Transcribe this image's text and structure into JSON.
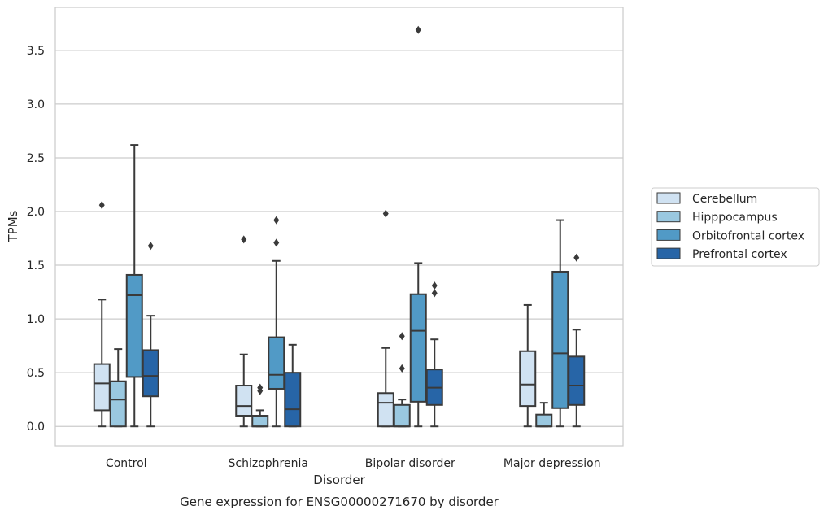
{
  "chart_data": {
    "type": "box",
    "title": "",
    "caption": "Gene expression for ENSG00000271670 by disorder",
    "xlabel": "Disorder",
    "ylabel": "TPMs",
    "ylim": [
      -0.18,
      3.9
    ],
    "yticks": [
      0.0,
      0.5,
      1.0,
      1.5,
      2.0,
      2.5,
      3.0,
      3.5
    ],
    "ytick_labels": [
      "0.0",
      "0.5",
      "1.0",
      "1.5",
      "2.0",
      "2.5",
      "3.0",
      "3.5"
    ],
    "categories": [
      "Control",
      "Schizophrenia",
      "Bipolar disorder",
      "Major depression"
    ],
    "grid": "horizontal",
    "legend_position": "right",
    "series": [
      {
        "name": "Cerebellum",
        "color": "#d0e2f2",
        "boxes": [
          {
            "whislo": 0.0,
            "q1": 0.15,
            "med": 0.4,
            "q3": 0.58,
            "whishi": 1.18,
            "fliers": [
              2.06
            ]
          },
          {
            "whislo": 0.0,
            "q1": 0.1,
            "med": 0.19,
            "q3": 0.38,
            "whishi": 0.67,
            "fliers": [
              1.74
            ]
          },
          {
            "whislo": 0.0,
            "q1": 0.0,
            "med": 0.22,
            "q3": 0.31,
            "whishi": 0.73,
            "fliers": [
              1.98
            ]
          },
          {
            "whislo": 0.0,
            "q1": 0.19,
            "med": 0.39,
            "q3": 0.7,
            "whishi": 1.13,
            "fliers": []
          }
        ]
      },
      {
        "name": "Hipppocampus",
        "color": "#9ac8e0",
        "boxes": [
          {
            "whislo": 0.0,
            "q1": 0.0,
            "med": 0.25,
            "q3": 0.42,
            "whishi": 0.72,
            "fliers": []
          },
          {
            "whislo": 0.0,
            "q1": 0.0,
            "med": 0.0,
            "q3": 0.1,
            "whishi": 0.15,
            "fliers": [
              0.33,
              0.36
            ]
          },
          {
            "whislo": 0.0,
            "q1": 0.0,
            "med": 0.0,
            "q3": 0.2,
            "whishi": 0.25,
            "fliers": [
              0.54,
              0.84
            ]
          },
          {
            "whislo": 0.0,
            "q1": 0.0,
            "med": 0.0,
            "q3": 0.11,
            "whishi": 0.22,
            "fliers": []
          }
        ]
      },
      {
        "name": "Orbitofrontal cortex",
        "color": "#519ac6",
        "boxes": [
          {
            "whislo": 0.0,
            "q1": 0.46,
            "med": 1.22,
            "q3": 1.41,
            "whishi": 2.62,
            "fliers": []
          },
          {
            "whislo": 0.0,
            "q1": 0.35,
            "med": 0.48,
            "q3": 0.83,
            "whishi": 1.54,
            "fliers": [
              1.71,
              1.92
            ]
          },
          {
            "whislo": 0.0,
            "q1": 0.23,
            "med": 0.89,
            "q3": 1.23,
            "whishi": 1.52,
            "fliers": [
              3.69
            ]
          },
          {
            "whislo": 0.0,
            "q1": 0.17,
            "med": 0.68,
            "q3": 1.44,
            "whishi": 1.92,
            "fliers": []
          }
        ]
      },
      {
        "name": "Prefrontal cortex",
        "color": "#2765a7",
        "boxes": [
          {
            "whislo": 0.0,
            "q1": 0.28,
            "med": 0.47,
            "q3": 0.71,
            "whishi": 1.03,
            "fliers": [
              1.68
            ]
          },
          {
            "whislo": 0.0,
            "q1": 0.0,
            "med": 0.16,
            "q3": 0.5,
            "whishi": 0.76,
            "fliers": []
          },
          {
            "whislo": 0.0,
            "q1": 0.2,
            "med": 0.36,
            "q3": 0.53,
            "whishi": 0.81,
            "fliers": [
              1.24,
              1.31
            ]
          },
          {
            "whislo": 0.0,
            "q1": 0.2,
            "med": 0.38,
            "q3": 0.65,
            "whishi": 0.9,
            "fliers": [
              1.57
            ]
          }
        ]
      }
    ]
  }
}
